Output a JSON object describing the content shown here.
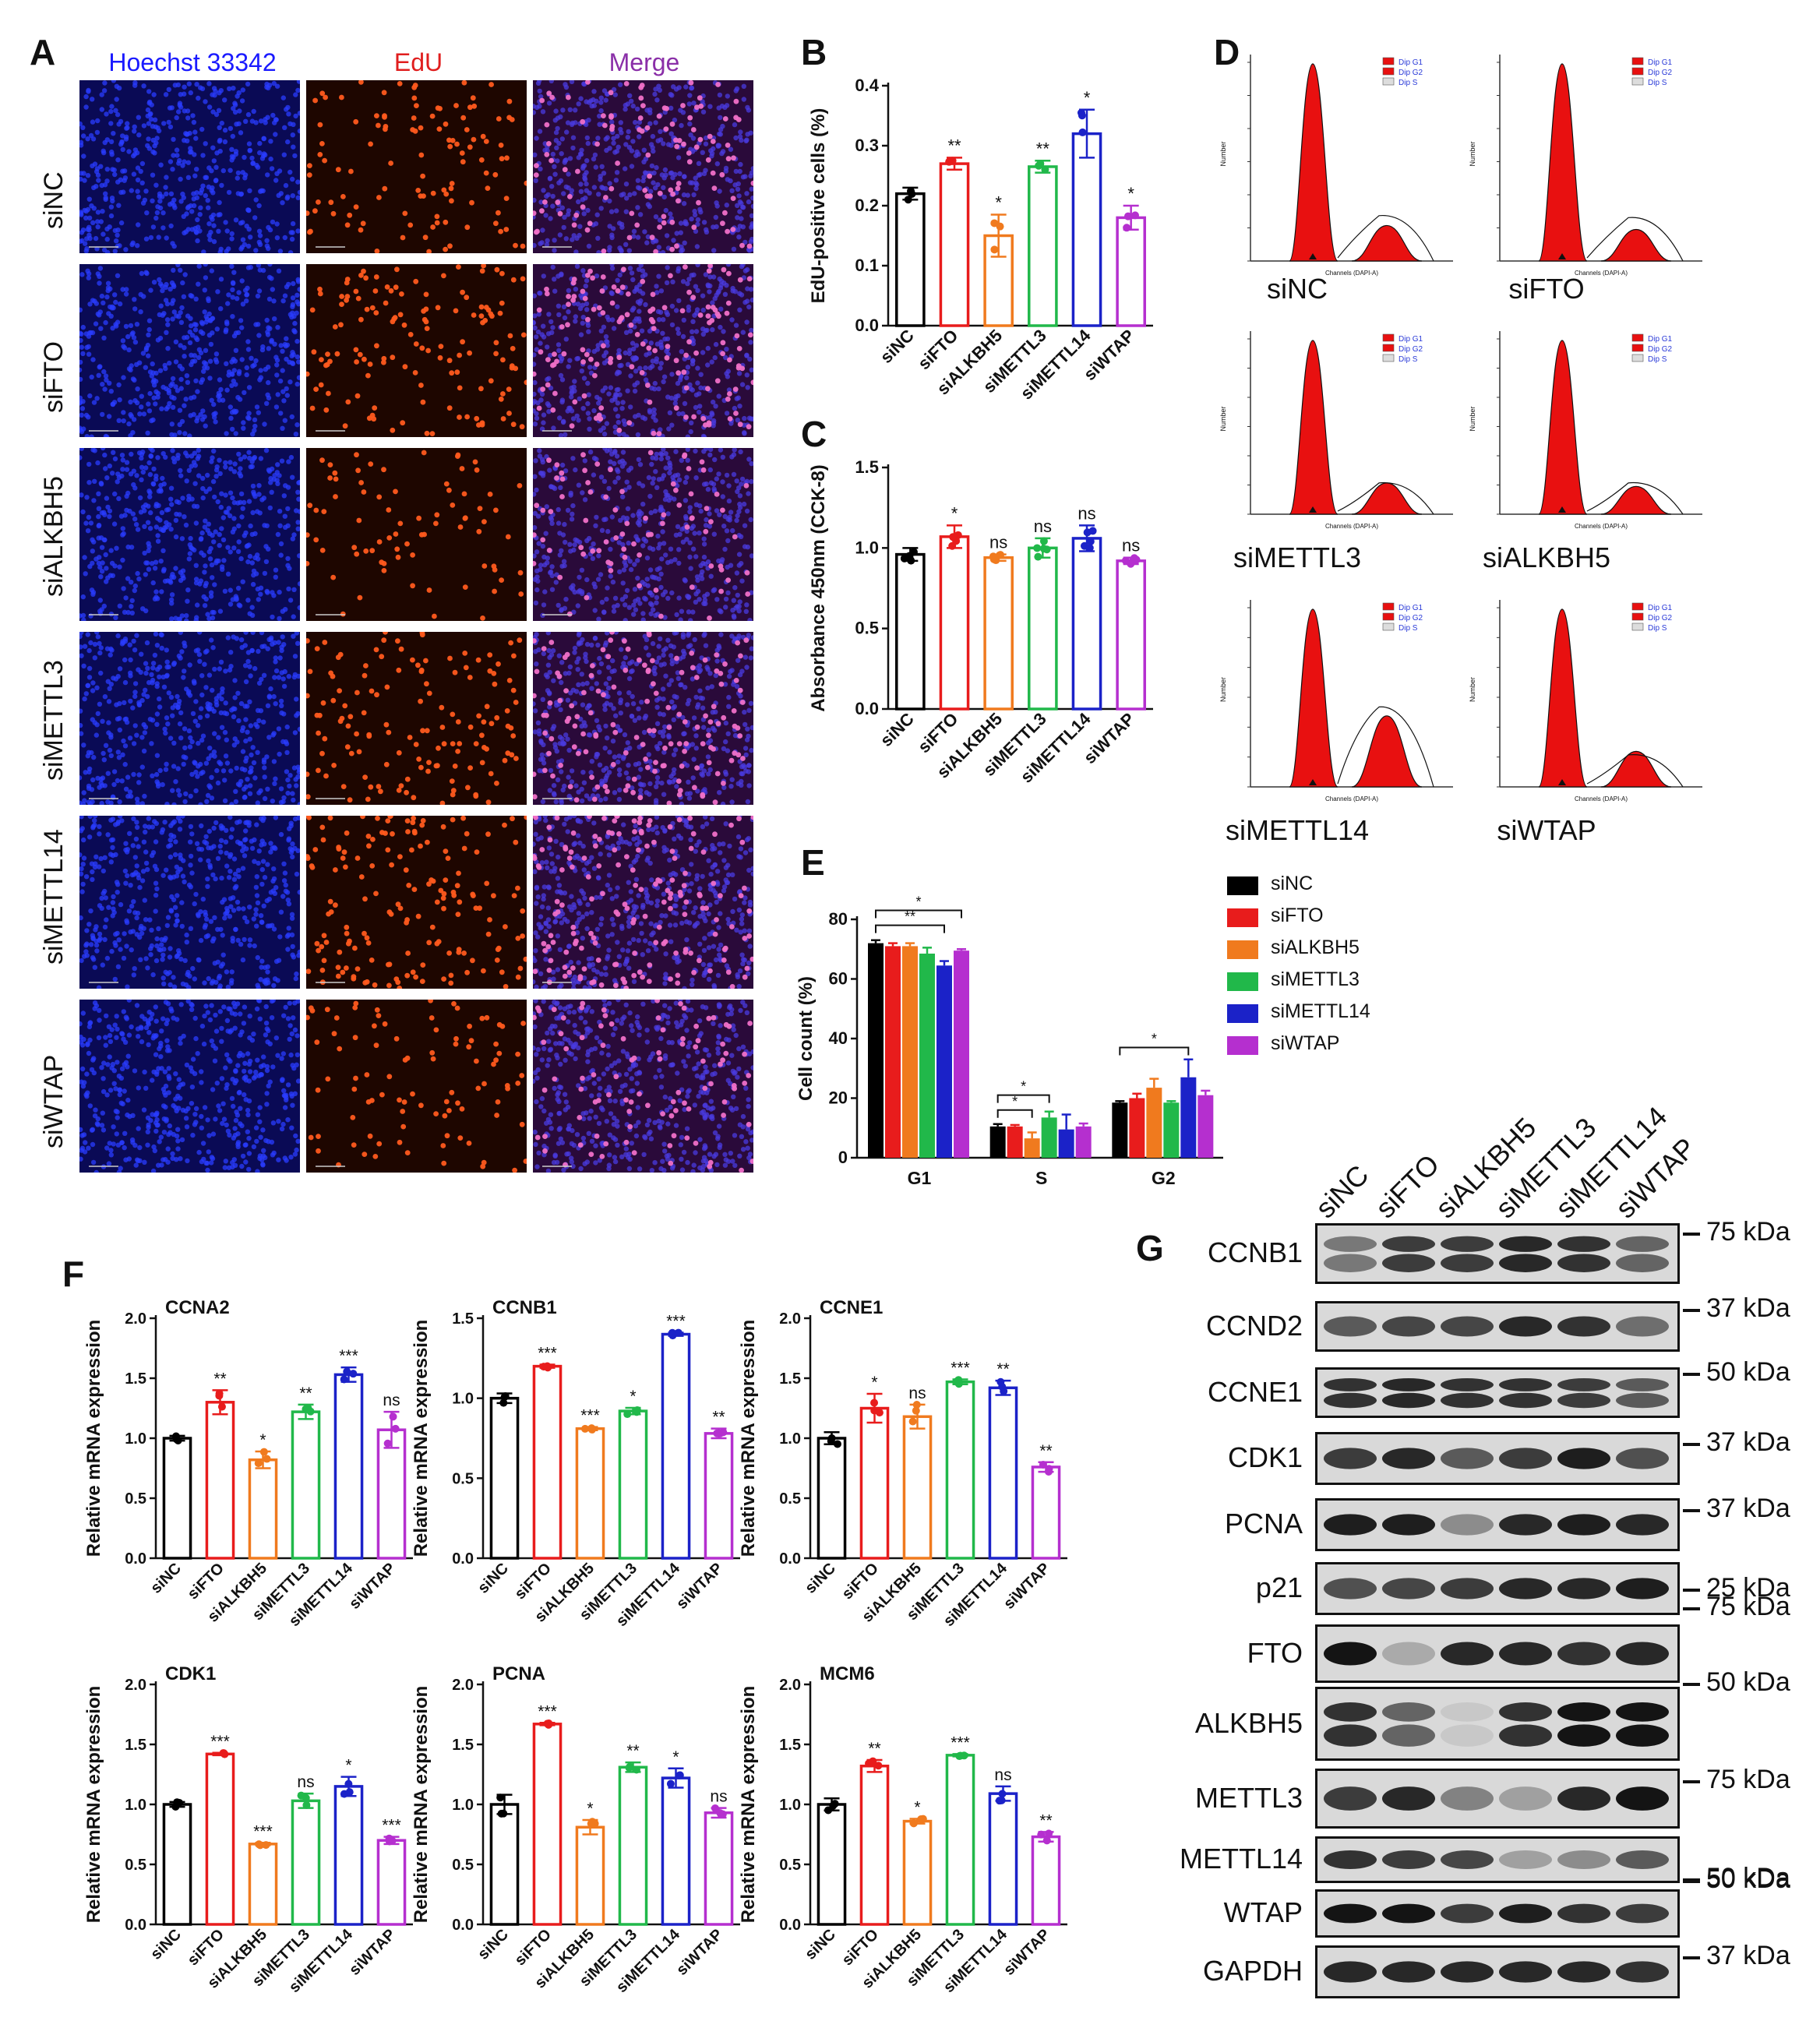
{
  "panels": {
    "A": "A",
    "B": "B",
    "C": "C",
    "D": "D",
    "E": "E",
    "F": "F",
    "G": "G"
  },
  "panelA": {
    "channels": [
      "Hoechst 33342",
      "EdU",
      "Merge"
    ],
    "channel_colors": [
      "#1a1aff",
      "#e01e1e",
      "#8a2fa8"
    ],
    "rows": [
      "siNC",
      "siFTO",
      "siALKBH5",
      "siMETTL3",
      "siMETTL14",
      "siWTAP"
    ],
    "edu_relative_density": [
      0.22,
      0.27,
      0.15,
      0.27,
      0.32,
      0.18
    ]
  },
  "groups": [
    "siNC",
    "siFTO",
    "siALKBH5",
    "siMETTL3",
    "siMETTL14",
    "siWTAP"
  ],
  "group_colors": [
    "#000000",
    "#e81c1c",
    "#f07a1e",
    "#21b84a",
    "#1b22c8",
    "#b52fcf"
  ],
  "panelD": {
    "legend": [
      "Dip G1",
      "Dip G2",
      "Dip S"
    ],
    "y_axis": "Number",
    "x_axis": "Channels (DAPI-A)",
    "labels": [
      "siNC",
      "siFTO",
      "siMETTL3",
      "siALKBH5",
      "siMETTL14",
      "siWTAP"
    ]
  },
  "panelG": {
    "lanes": [
      "siNC",
      "siFTO",
      "siALKBH5",
      "siMETTL3",
      "siMETTL14",
      "siWTAP"
    ],
    "blots": [
      {
        "name": "CCNB1",
        "kda": "75 kDa"
      },
      {
        "name": "CCND2",
        "kda": "37 kDa"
      },
      {
        "name": "CCNE1",
        "kda": "50 kDa"
      },
      {
        "name": "CDK1",
        "kda": "37 kDa"
      },
      {
        "name": "PCNA",
        "kda": "37 kDa"
      },
      {
        "name": "p21",
        "kda": "25 kDa"
      },
      {
        "name": "FTO",
        "kda": "75 kDa"
      },
      {
        "name": "ALKBH5",
        "kda": "50 kDa"
      },
      {
        "name": "METTL3",
        "kda": "75 kDa"
      },
      {
        "name": "METTL14",
        "kda": "50 kDa"
      },
      {
        "name": "WTAP",
        "kda": "50 kDa"
      },
      {
        "name": "GAPDH",
        "kda": "37 kDa"
      }
    ],
    "band_intensity": [
      [
        0.45,
        0.75,
        0.75,
        0.85,
        0.8,
        0.55
      ],
      [
        0.6,
        0.7,
        0.7,
        0.85,
        0.8,
        0.5
      ],
      [
        0.8,
        0.85,
        0.8,
        0.8,
        0.75,
        0.6
      ],
      [
        0.75,
        0.85,
        0.6,
        0.75,
        0.9,
        0.65
      ],
      [
        0.9,
        0.9,
        0.35,
        0.85,
        0.9,
        0.85
      ],
      [
        0.65,
        0.7,
        0.75,
        0.85,
        0.85,
        0.9
      ],
      [
        0.95,
        0.2,
        0.85,
        0.85,
        0.8,
        0.85
      ],
      [
        0.8,
        0.55,
        0.05,
        0.8,
        0.95,
        0.95
      ],
      [
        0.75,
        0.85,
        0.4,
        0.25,
        0.85,
        0.95
      ],
      [
        0.8,
        0.75,
        0.7,
        0.25,
        0.35,
        0.6
      ],
      [
        0.95,
        0.95,
        0.75,
        0.9,
        0.8,
        0.75
      ],
      [
        0.85,
        0.85,
        0.85,
        0.85,
        0.85,
        0.8
      ]
    ]
  },
  "chart_data": [
    {
      "id": "B",
      "type": "bar",
      "categories": [
        "siNC",
        "siFTO",
        "siALKBH5",
        "siMETTL3",
        "siMETTL14",
        "siWTAP"
      ],
      "values": [
        0.22,
        0.27,
        0.15,
        0.265,
        0.32,
        0.18
      ],
      "errors": [
        0.01,
        0.01,
        0.035,
        0.01,
        0.04,
        0.02
      ],
      "significance": [
        "",
        "**",
        "*",
        "**",
        "*",
        "*"
      ],
      "ylabel": "EdU-positive cells (%)",
      "ylim": [
        0,
        0.4
      ],
      "yticks": [
        "0.0",
        "0.1",
        "0.2",
        "0.3",
        "0.4"
      ]
    },
    {
      "id": "C",
      "type": "bar",
      "categories": [
        "siNC",
        "siFTO",
        "siALKBH5",
        "siMETTL3",
        "siMETTL14",
        "siWTAP"
      ],
      "values": [
        0.96,
        1.07,
        0.94,
        1.0,
        1.06,
        0.92
      ],
      "errors": [
        0.04,
        0.07,
        0.02,
        0.06,
        0.08,
        0.02
      ],
      "significance": [
        "",
        "*",
        "ns",
        "ns",
        "ns",
        "ns"
      ],
      "ylabel": "Absorbance 450nm (CCK-8)",
      "ylim": [
        0,
        1.5
      ],
      "yticks": [
        "0.0",
        "0.5",
        "1.0",
        "1.5"
      ]
    },
    {
      "id": "E",
      "type": "bar",
      "categories": [
        "G1",
        "S",
        "G2"
      ],
      "series": [
        {
          "name": "siNC",
          "values": [
            72,
            10.5,
            18.5
          ],
          "errors": [
            1,
            0.8,
            0.5
          ]
        },
        {
          "name": "siFTO",
          "values": [
            71,
            10.5,
            20
          ],
          "errors": [
            1,
            0.5,
            1.5
          ]
        },
        {
          "name": "siALKBH5",
          "values": [
            71,
            6.5,
            23.5
          ],
          "errors": [
            1,
            2,
            3
          ]
        },
        {
          "name": "siMETTL3",
          "values": [
            68.5,
            13.5,
            18.5
          ],
          "errors": [
            2,
            2,
            0.5
          ]
        },
        {
          "name": "siMETTL14",
          "values": [
            64.5,
            9.5,
            27
          ],
          "errors": [
            1.5,
            5,
            6
          ]
        },
        {
          "name": "siWTAP",
          "values": [
            69.5,
            10.5,
            21
          ],
          "errors": [
            0.5,
            1,
            1.5
          ]
        }
      ],
      "brackets_significance": [
        "*",
        "**",
        "*",
        "*",
        "*"
      ],
      "ylabel": "Cell count (%)",
      "ylim": [
        0,
        80
      ],
      "yticks": [
        "0",
        "20",
        "40",
        "60",
        "80"
      ]
    },
    {
      "id": "F1",
      "type": "bar",
      "title": "CCNA2",
      "categories": [
        "siNC",
        "siFTO",
        "siALKBH5",
        "siMETTL3",
        "siMETTL14",
        "siWTAP"
      ],
      "values": [
        1.0,
        1.3,
        0.82,
        1.22,
        1.53,
        1.07
      ],
      "errors": [
        0.02,
        0.1,
        0.07,
        0.06,
        0.06,
        0.15
      ],
      "significance": [
        "",
        "**",
        "*",
        "**",
        "***",
        "ns"
      ],
      "ylabel": "Relative mRNA expression",
      "ylim": [
        0,
        2.0
      ],
      "yticks": [
        "0.0",
        "0.5",
        "1.0",
        "1.5",
        "2.0"
      ]
    },
    {
      "id": "F2",
      "type": "bar",
      "title": "CCNB1",
      "categories": [
        "siNC",
        "siFTO",
        "siALKBH5",
        "siMETTL3",
        "siMETTL14",
        "siWTAP"
      ],
      "values": [
        1.0,
        1.2,
        0.81,
        0.92,
        1.4,
        0.78
      ],
      "errors": [
        0.03,
        0.01,
        0.01,
        0.02,
        0.01,
        0.03
      ],
      "significance": [
        "",
        "***",
        "***",
        "*",
        "***",
        "**"
      ],
      "ylabel": "Relative mRNA expression",
      "ylim": [
        0,
        1.5
      ],
      "yticks": [
        "0.0",
        "0.5",
        "1.0",
        "1.5"
      ]
    },
    {
      "id": "F3",
      "type": "bar",
      "title": "CCNE1",
      "categories": [
        "siNC",
        "siFTO",
        "siALKBH5",
        "siMETTL3",
        "siMETTL14",
        "siWTAP"
      ],
      "values": [
        1.0,
        1.25,
        1.18,
        1.47,
        1.42,
        0.76
      ],
      "errors": [
        0.05,
        0.12,
        0.1,
        0.02,
        0.06,
        0.04
      ],
      "significance": [
        "",
        "*",
        "ns",
        "***",
        "**",
        "**"
      ],
      "ylabel": "Relative mRNA expression",
      "ylim": [
        0,
        2.0
      ],
      "yticks": [
        "0.0",
        "0.5",
        "1.0",
        "1.5",
        "2.0"
      ]
    },
    {
      "id": "F4",
      "type": "bar",
      "title": "CDK1",
      "categories": [
        "siNC",
        "siFTO",
        "siALKBH5",
        "siMETTL3",
        "siMETTL14",
        "siWTAP"
      ],
      "values": [
        1.0,
        1.42,
        0.67,
        1.03,
        1.15,
        0.7
      ],
      "errors": [
        0.02,
        0.01,
        0.01,
        0.06,
        0.08,
        0.03
      ],
      "significance": [
        "",
        "***",
        "***",
        "ns",
        "*",
        "***"
      ],
      "ylabel": "Relative mRNA expression",
      "ylim": [
        0,
        2.0
      ],
      "yticks": [
        "0.0",
        "0.5",
        "1.0",
        "1.5",
        "2.0"
      ]
    },
    {
      "id": "F5",
      "type": "bar",
      "title": "PCNA",
      "categories": [
        "siNC",
        "siFTO",
        "siALKBH5",
        "siMETTL3",
        "siMETTL14",
        "siWTAP"
      ],
      "values": [
        1.0,
        1.67,
        0.81,
        1.31,
        1.22,
        0.93
      ],
      "errors": [
        0.08,
        0.01,
        0.06,
        0.04,
        0.08,
        0.04
      ],
      "significance": [
        "",
        "***",
        "*",
        "**",
        "*",
        "ns"
      ],
      "ylabel": "Relative mRNA expression",
      "ylim": [
        0,
        2.0
      ],
      "yticks": [
        "0.0",
        "0.5",
        "1.0",
        "1.5",
        "2.0"
      ]
    },
    {
      "id": "F6",
      "type": "bar",
      "title": "MCM6",
      "categories": [
        "siNC",
        "siFTO",
        "siALKBH5",
        "siMETTL3",
        "siMETTL14",
        "siWTAP"
      ],
      "values": [
        1.0,
        1.32,
        0.86,
        1.41,
        1.09,
        0.73
      ],
      "errors": [
        0.05,
        0.05,
        0.02,
        0.01,
        0.06,
        0.04
      ],
      "significance": [
        "",
        "**",
        "*",
        "***",
        "ns",
        "**"
      ],
      "ylabel": "Relative mRNA expression",
      "ylim": [
        0,
        2.0
      ],
      "yticks": [
        "0.0",
        "0.5",
        "1.0",
        "1.5",
        "2.0"
      ]
    }
  ]
}
